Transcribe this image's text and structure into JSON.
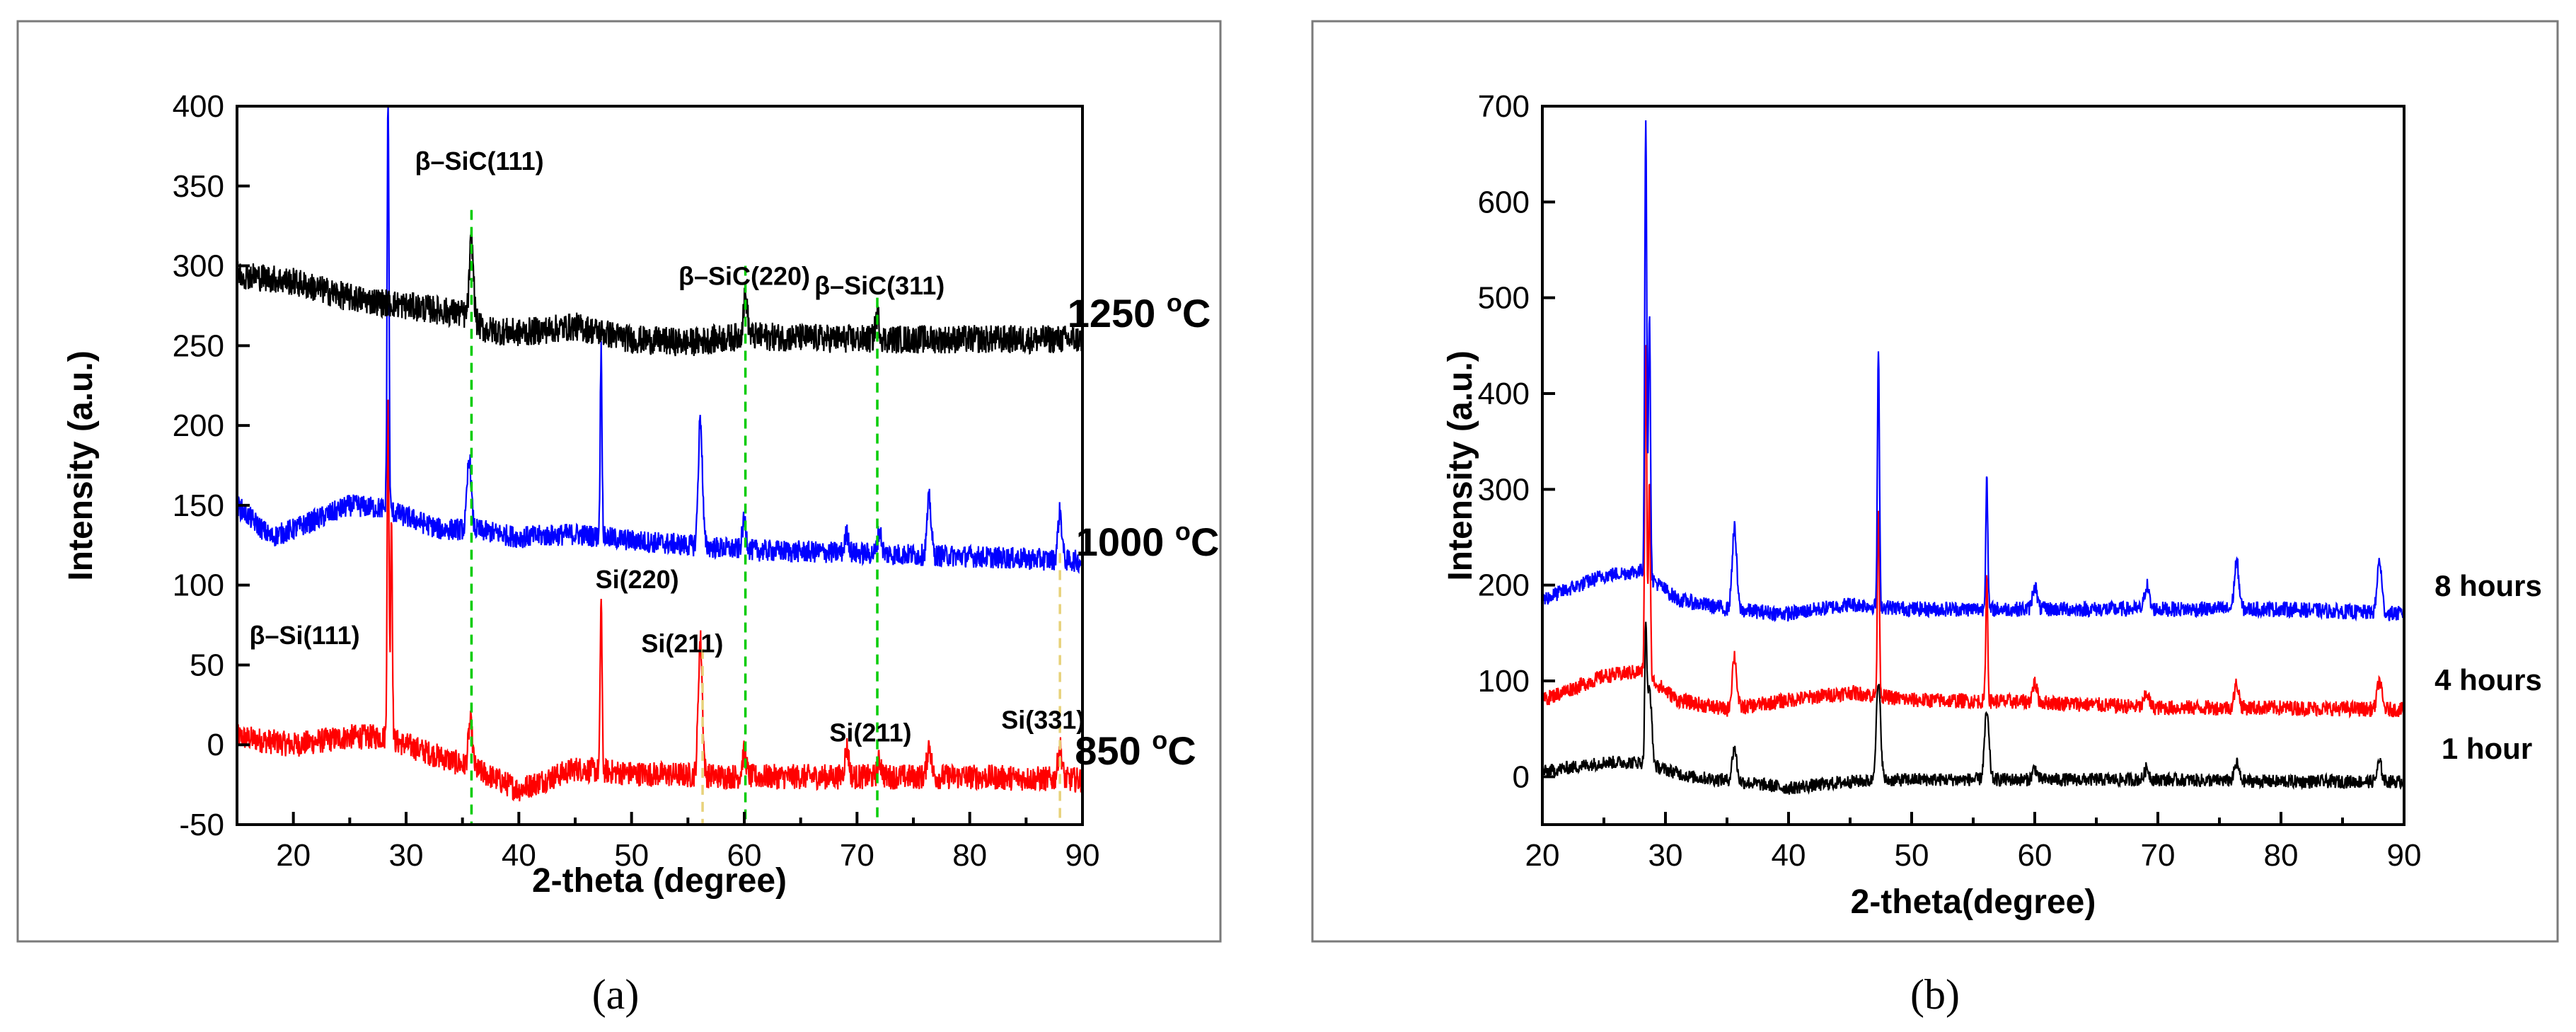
{
  "captions": {
    "a": "(a)",
    "b": "(b)"
  },
  "colors": {
    "black": "#000000",
    "blue": "#0000ff",
    "red": "#ff0000",
    "green": "#00cc00",
    "yellow": "#e8d27a"
  },
  "chart_data": [
    {
      "type": "line",
      "panel": "a",
      "title": "",
      "xlabel": "2-theta (degree)",
      "ylabel": "Intensity (a.u.)",
      "xlim": [
        15,
        90
      ],
      "ylim": [
        -50,
        400
      ],
      "xticks": [
        "20",
        "30",
        "40",
        "50",
        "60",
        "70",
        "80",
        "90"
      ],
      "yticks": [
        "-50",
        "0",
        "50",
        "100",
        "150",
        "200",
        "250",
        "300",
        "350",
        "400"
      ],
      "series": [
        {
          "name": "850 °C",
          "label_main": "850 ",
          "label_sup": "o",
          "label_unit": "C",
          "color": "#ff0000",
          "baseline": [
            [
              15,
              5
            ],
            [
              20,
              0
            ],
            [
              25,
              5
            ],
            [
              28,
              5
            ],
            [
              32,
              -5
            ],
            [
              36,
              -15
            ],
            [
              40,
              -28
            ],
            [
              45,
              -15
            ],
            [
              50,
              -18
            ],
            [
              60,
              -20
            ],
            [
              70,
              -20
            ],
            [
              80,
              -20
            ],
            [
              90,
              -22
            ]
          ],
          "noise": 8,
          "peaks": [
            [
              28.4,
              210
            ],
            [
              28.7,
              140
            ],
            [
              35.7,
              28
            ],
            [
              47.3,
              110
            ],
            [
              56.1,
              85
            ],
            [
              60.0,
              15
            ],
            [
              69.1,
              18
            ],
            [
              72.0,
              10
            ],
            [
              76.4,
              20
            ],
            [
              88.0,
              20
            ]
          ]
        },
        {
          "name": "1000 °C",
          "label_main": "1000 ",
          "label_sup": "o",
          "label_unit": "C",
          "color": "#0000ff",
          "baseline": [
            [
              15,
              150
            ],
            [
              18,
              130
            ],
            [
              20,
              135
            ],
            [
              25,
              150
            ],
            [
              28,
              148
            ],
            [
              33,
              135
            ],
            [
              36,
              135
            ],
            [
              40,
              130
            ],
            [
              45,
              132
            ],
            [
              50,
              128
            ],
            [
              60,
              122
            ],
            [
              70,
              120
            ],
            [
              80,
              118
            ],
            [
              90,
              115
            ]
          ],
          "noise": 7,
          "peaks": [
            [
              28.4,
              265
            ],
            [
              35.6,
              45
            ],
            [
              47.3,
              118
            ],
            [
              56.1,
              80
            ],
            [
              60.0,
              18
            ],
            [
              69.1,
              12
            ],
            [
              72.0,
              14
            ],
            [
              76.4,
              35
            ],
            [
              88.0,
              30
            ]
          ]
        },
        {
          "name": "1250 °C",
          "label_main": "1250 ",
          "label_sup": "o",
          "label_unit": "C",
          "color": "#000000",
          "baseline": [
            [
              15,
              295
            ],
            [
              20,
              290
            ],
            [
              25,
              280
            ],
            [
              30,
              275
            ],
            [
              35,
              270
            ],
            [
              37,
              260
            ],
            [
              40,
              258
            ],
            [
              45,
              262
            ],
            [
              50,
              254
            ],
            [
              55,
              252
            ],
            [
              60,
              256
            ],
            [
              70,
              254
            ],
            [
              80,
              254
            ],
            [
              90,
              254
            ]
          ],
          "noise": 9,
          "peaks": [
            [
              35.8,
              50
            ],
            [
              60.1,
              25
            ],
            [
              71.8,
              15
            ]
          ]
        }
      ],
      "annotations": [
        {
          "text": "β–SiC(111)",
          "x": 36.5,
          "y": 360
        },
        {
          "text": "β–SiC(220)",
          "x": 60.0,
          "y": 288
        },
        {
          "text": "β–SiC(311)",
          "x": 72.0,
          "y": 282
        },
        {
          "text": "Si(220)",
          "x": 50.5,
          "y": 98
        },
        {
          "text": "β–Si(111)",
          "x": 21.0,
          "y": 63
        },
        {
          "text": "Si(211)",
          "x": 54.5,
          "y": 58
        },
        {
          "text": "Si(211)",
          "x": 71.2,
          "y": 2
        },
        {
          "text": "Si(331)",
          "x": 86.5,
          "y": 10
        }
      ],
      "reference_lines": [
        {
          "x": 35.8,
          "color": "#00cc00",
          "ymax": 335
        },
        {
          "x": 60.1,
          "color": "#00cc00",
          "ymax": 300
        },
        {
          "x": 71.8,
          "color": "#00cc00",
          "ymax": 280
        },
        {
          "x": 56.3,
          "color": "#e8d27a",
          "ymax": 60
        },
        {
          "x": 88.0,
          "color": "#e8d27a",
          "ymax": 120
        }
      ]
    },
    {
      "type": "line",
      "panel": "b",
      "title": "",
      "xlabel": "2-theta(degree)",
      "ylabel": "Intensity (a.u.)",
      "xlim": [
        20,
        90
      ],
      "ylim": [
        -50,
        700
      ],
      "xticks": [
        "20",
        "30",
        "40",
        "50",
        "60",
        "70",
        "80",
        "90"
      ],
      "yticks": [
        "0",
        "100",
        "200",
        "300",
        "400",
        "500",
        "600",
        "700"
      ],
      "series": [
        {
          "name": "1 hour",
          "color": "#000000",
          "baseline": [
            [
              20,
              5
            ],
            [
              25,
              15
            ],
            [
              28,
              15
            ],
            [
              32,
              0
            ],
            [
              36,
              -5
            ],
            [
              40,
              -12
            ],
            [
              45,
              -5
            ],
            [
              50,
              -3
            ],
            [
              60,
              -3
            ],
            [
              70,
              -3
            ],
            [
              80,
              -5
            ],
            [
              90,
              -5
            ]
          ],
          "noise": 7,
          "peaks": [
            [
              28.4,
              130
            ],
            [
              28.7,
              80
            ],
            [
              35.6,
              35
            ],
            [
              47.3,
              100
            ],
            [
              56.1,
              70
            ],
            [
              60.0,
              12
            ],
            [
              69.1,
              12
            ],
            [
              76.4,
              18
            ],
            [
              88.0,
              20
            ]
          ]
        },
        {
          "name": "4 hours",
          "color": "#ff0000",
          "baseline": [
            [
              20,
              80
            ],
            [
              25,
              105
            ],
            [
              28,
              110
            ],
            [
              31,
              80
            ],
            [
              35,
              70
            ],
            [
              40,
              80
            ],
            [
              45,
              88
            ],
            [
              50,
              80
            ],
            [
              60,
              78
            ],
            [
              70,
              72
            ],
            [
              80,
              72
            ],
            [
              90,
              70
            ]
          ],
          "noise": 8,
          "peaks": [
            [
              28.4,
              350
            ],
            [
              28.7,
              200
            ],
            [
              35.6,
              55
            ],
            [
              47.3,
              200
            ],
            [
              56.1,
              130
            ],
            [
              60.0,
              20
            ],
            [
              69.1,
              15
            ],
            [
              76.4,
              25
            ],
            [
              88.0,
              30
            ]
          ]
        },
        {
          "name": "8 hours",
          "color": "#0000ff",
          "baseline": [
            [
              20,
              185
            ],
            [
              25,
              210
            ],
            [
              28,
              215
            ],
            [
              31,
              185
            ],
            [
              35,
              175
            ],
            [
              40,
              170
            ],
            [
              45,
              180
            ],
            [
              50,
              175
            ],
            [
              60,
              175
            ],
            [
              70,
              175
            ],
            [
              80,
              175
            ],
            [
              90,
              170
            ]
          ],
          "noise": 8,
          "peaks": [
            [
              28.4,
              480
            ],
            [
              28.7,
              280
            ],
            [
              35.6,
              85
            ],
            [
              47.3,
              270
            ],
            [
              56.1,
              140
            ],
            [
              60.0,
              25
            ],
            [
              69.1,
              25
            ],
            [
              76.4,
              50
            ],
            [
              88.0,
              55
            ]
          ]
        }
      ]
    }
  ]
}
